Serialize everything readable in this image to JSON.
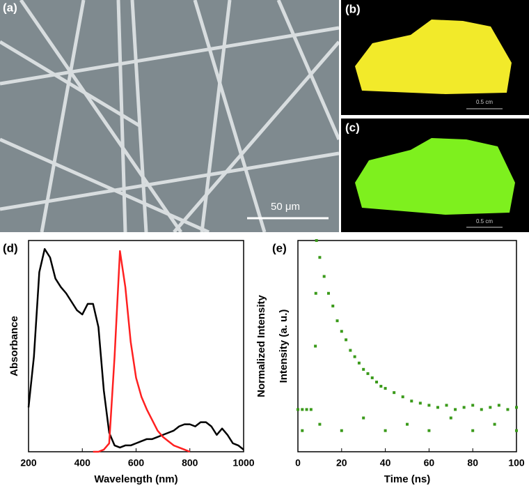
{
  "panels": {
    "a": {
      "label": "(a)",
      "scale_bar": "50 μm"
    },
    "b": {
      "label": "(b)",
      "scale_bar": "0.5 cm"
    },
    "c": {
      "label": "(c)",
      "scale_bar": "0.5 cm"
    }
  },
  "chart_data": [
    {
      "type": "line",
      "label": "(d)",
      "xlabel": "Wavelength (nm)",
      "ylabel": "Absorbance",
      "y2label": "Normalized Intensity",
      "x": [
        200,
        220,
        240,
        260,
        280,
        300,
        320,
        340,
        360,
        380,
        400,
        420,
        440,
        460,
        480,
        500,
        520,
        540,
        560,
        580,
        600,
        620,
        640,
        660,
        680,
        700,
        720,
        740,
        760,
        780,
        800,
        820,
        840,
        860,
        880,
        900,
        920,
        940,
        960,
        980,
        1000
      ],
      "series": [
        {
          "color": "#000000",
          "values": [
            0.21,
            0.45,
            0.85,
            0.96,
            0.92,
            0.82,
            0.78,
            0.75,
            0.71,
            0.67,
            0.65,
            0.7,
            0.7,
            0.59,
            0.29,
            0.09,
            0.03,
            0.02,
            0.03,
            0.03,
            0.04,
            0.05,
            0.06,
            0.06,
            0.07,
            0.08,
            0.09,
            0.1,
            0.12,
            0.13,
            0.13,
            0.12,
            0.14,
            0.14,
            0.12,
            0.08,
            0.11,
            0.08,
            0.04,
            0.03,
            0.01
          ]
        },
        {
          "color": "#ff2020",
          "values": [
            null,
            null,
            null,
            null,
            null,
            null,
            null,
            null,
            null,
            null,
            null,
            null,
            0,
            0,
            0.01,
            0.04,
            0.45,
            0.95,
            0.78,
            0.52,
            0.35,
            0.26,
            0.2,
            0.15,
            0.1,
            0.07,
            0.05,
            0.03,
            0.02,
            0.01,
            0,
            null,
            null,
            null,
            null,
            null,
            null,
            null,
            null,
            null,
            null
          ]
        }
      ],
      "xlim": [
        200,
        1000
      ],
      "ylim": [
        0,
        1
      ],
      "xticks": [
        200,
        400,
        600,
        800,
        1000
      ]
    },
    {
      "type": "scatter",
      "label": "(e)",
      "xlabel": "Time (ns)",
      "ylabel": "Intensity (a. u.)",
      "color": "#3a9a1a",
      "x": [
        0,
        2,
        4,
        6,
        8,
        8.2,
        8.5,
        10,
        12,
        14,
        16,
        18,
        20,
        22,
        24,
        26,
        28,
        30,
        32,
        34,
        36,
        38,
        40,
        44,
        48,
        52,
        56,
        60,
        64,
        68,
        72,
        76,
        80,
        84,
        88,
        92,
        96,
        100,
        2,
        20,
        40,
        60,
        80,
        100,
        10,
        30,
        50,
        70,
        90
      ],
      "values": [
        0.2,
        0.2,
        0.2,
        0.2,
        0.5,
        0.75,
        1.0,
        0.92,
        0.83,
        0.75,
        0.69,
        0.62,
        0.57,
        0.53,
        0.48,
        0.45,
        0.42,
        0.39,
        0.37,
        0.35,
        0.33,
        0.31,
        0.3,
        0.28,
        0.26,
        0.24,
        0.23,
        0.22,
        0.21,
        0.22,
        0.2,
        0.21,
        0.22,
        0.2,
        0.21,
        0.22,
        0.2,
        0.21,
        0.1,
        0.1,
        0.1,
        0.1,
        0.1,
        0.1,
        0.13,
        0.16,
        0.13,
        0.16,
        0.13
      ],
      "xlim": [
        0,
        100
      ],
      "ylim": [
        0,
        1
      ],
      "xticks": [
        0,
        20,
        40,
        60,
        80,
        100
      ]
    }
  ]
}
